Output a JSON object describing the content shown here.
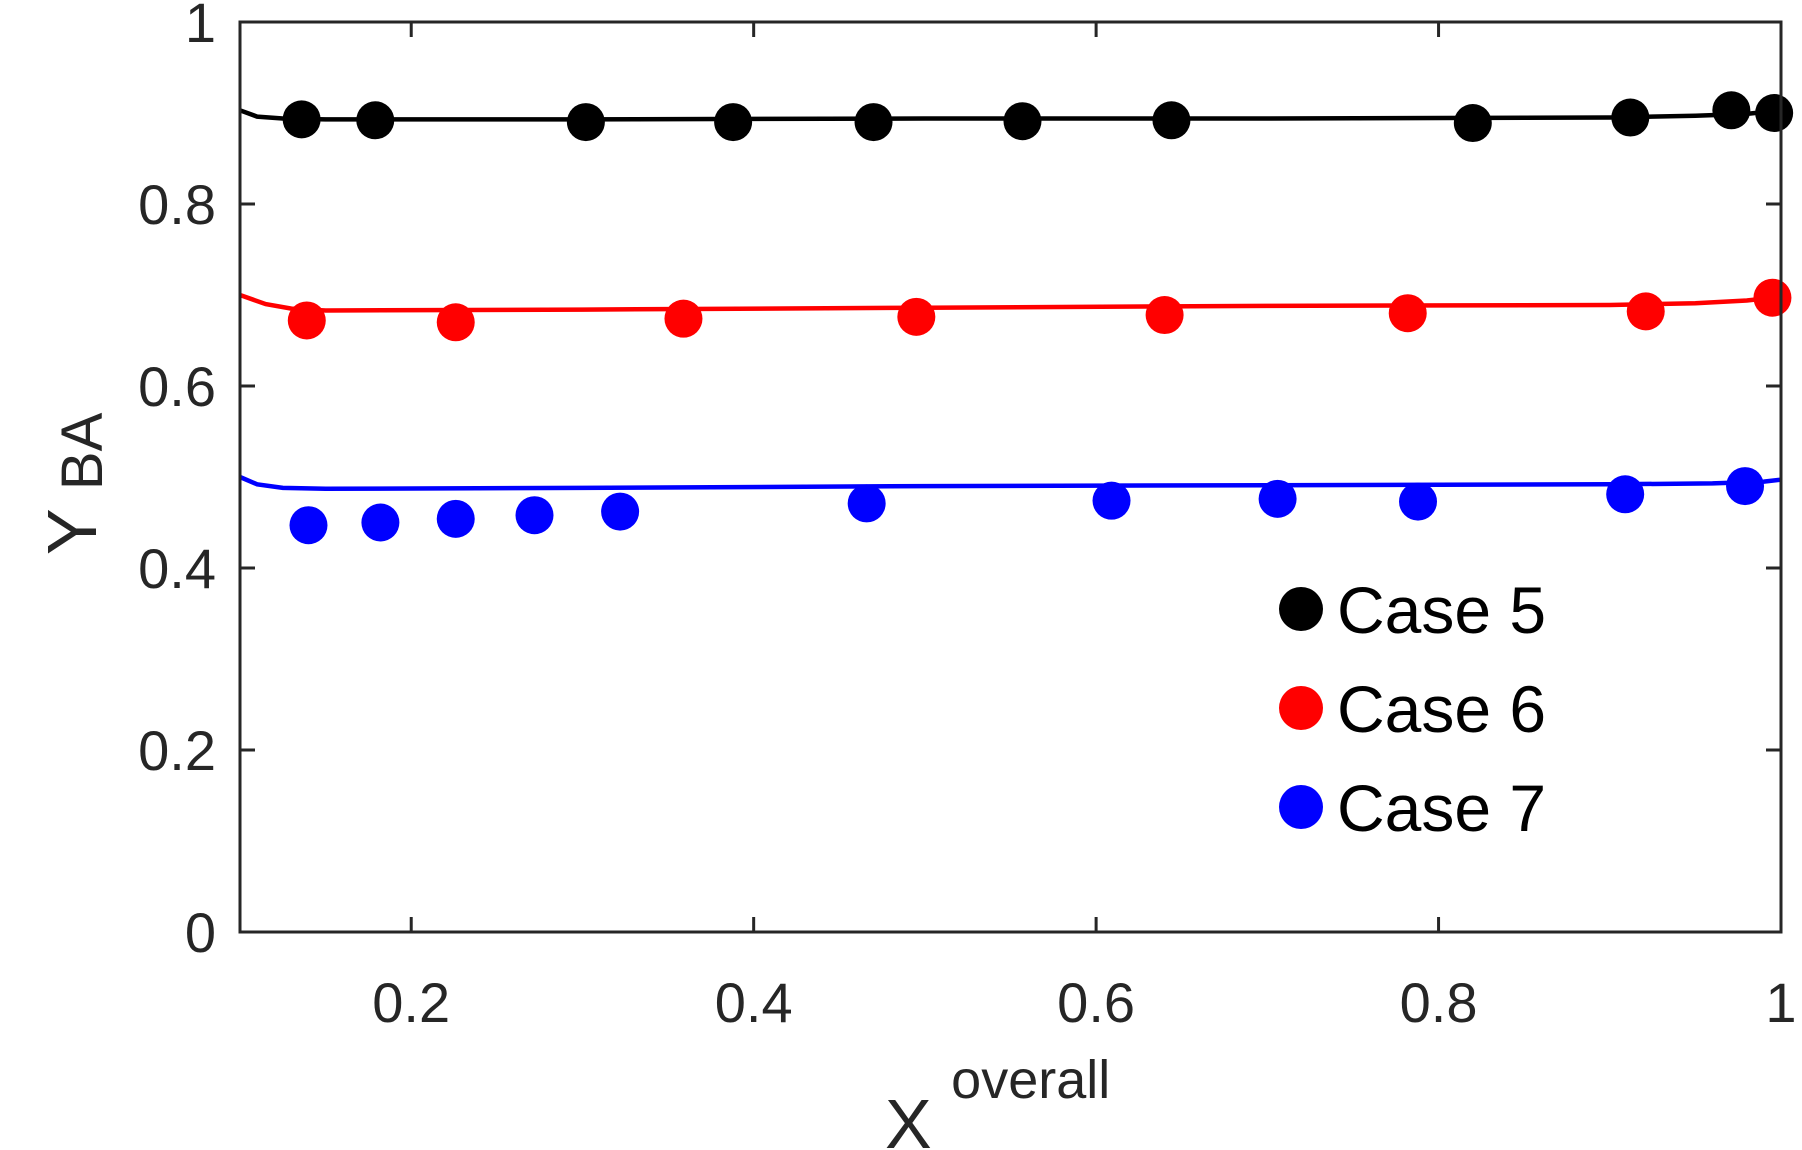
{
  "chart_data": {
    "type": "scatter",
    "title": "",
    "xlabel": {
      "base": "X",
      "superscript": "overall"
    },
    "ylabel": {
      "base": "Y",
      "subscript": "BA"
    },
    "xlim": [
      0.1,
      1.0
    ],
    "ylim": [
      0,
      1.0
    ],
    "xticks": [
      0.2,
      0.4,
      0.6,
      0.8,
      1.0
    ],
    "xtick_labels": [
      "0.2",
      "0.4",
      "0.6",
      "0.8",
      "1"
    ],
    "yticks": [
      0,
      0.2,
      0.4,
      0.6,
      0.8,
      1.0
    ],
    "ytick_labels": [
      "0",
      "0.2",
      "0.4",
      "0.6",
      "0.8",
      "1"
    ],
    "grid": false,
    "legend_position": "bottom-right",
    "series": [
      {
        "name": "Case 5",
        "color": "#000000",
        "points": [
          [
            0.136,
            0.893
          ],
          [
            0.179,
            0.892
          ],
          [
            0.302,
            0.89
          ],
          [
            0.388,
            0.89
          ],
          [
            0.47,
            0.89
          ],
          [
            0.557,
            0.891
          ],
          [
            0.644,
            0.892
          ],
          [
            0.82,
            0.889
          ],
          [
            0.912,
            0.895
          ],
          [
            0.971,
            0.903
          ],
          [
            0.996,
            0.9
          ]
        ],
        "fit": [
          [
            0.1,
            0.903
          ],
          [
            0.11,
            0.896
          ],
          [
            0.125,
            0.894
          ],
          [
            0.15,
            0.893
          ],
          [
            0.3,
            0.893
          ],
          [
            0.5,
            0.894
          ],
          [
            0.7,
            0.894
          ],
          [
            0.9,
            0.895
          ],
          [
            0.95,
            0.897
          ],
          [
            0.98,
            0.899
          ],
          [
            1.0,
            0.903
          ]
        ]
      },
      {
        "name": "Case 6",
        "color": "#ff0000",
        "points": [
          [
            0.139,
            0.672
          ],
          [
            0.226,
            0.67
          ],
          [
            0.359,
            0.674
          ],
          [
            0.495,
            0.676
          ],
          [
            0.64,
            0.678
          ],
          [
            0.782,
            0.68
          ],
          [
            0.921,
            0.682
          ],
          [
            0.995,
            0.697
          ]
        ],
        "fit": [
          [
            0.1,
            0.7
          ],
          [
            0.115,
            0.69
          ],
          [
            0.13,
            0.685
          ],
          [
            0.15,
            0.683
          ],
          [
            0.3,
            0.684
          ],
          [
            0.5,
            0.686
          ],
          [
            0.7,
            0.688
          ],
          [
            0.9,
            0.689
          ],
          [
            0.95,
            0.691
          ],
          [
            0.98,
            0.694
          ],
          [
            1.0,
            0.698
          ]
        ]
      },
      {
        "name": "Case 7",
        "color": "#0000ff",
        "points": [
          [
            0.14,
            0.447
          ],
          [
            0.182,
            0.45
          ],
          [
            0.226,
            0.454
          ],
          [
            0.272,
            0.458
          ],
          [
            0.322,
            0.462
          ],
          [
            0.466,
            0.471
          ],
          [
            0.609,
            0.474
          ],
          [
            0.706,
            0.476
          ],
          [
            0.788,
            0.473
          ],
          [
            0.909,
            0.481
          ],
          [
            0.979,
            0.49
          ]
        ],
        "fit": [
          [
            0.1,
            0.5
          ],
          [
            0.11,
            0.492
          ],
          [
            0.125,
            0.488
          ],
          [
            0.15,
            0.487
          ],
          [
            0.3,
            0.488
          ],
          [
            0.5,
            0.49
          ],
          [
            0.7,
            0.491
          ],
          [
            0.9,
            0.492
          ],
          [
            0.96,
            0.493
          ],
          [
            0.99,
            0.495
          ],
          [
            1.0,
            0.497
          ]
        ]
      }
    ]
  }
}
